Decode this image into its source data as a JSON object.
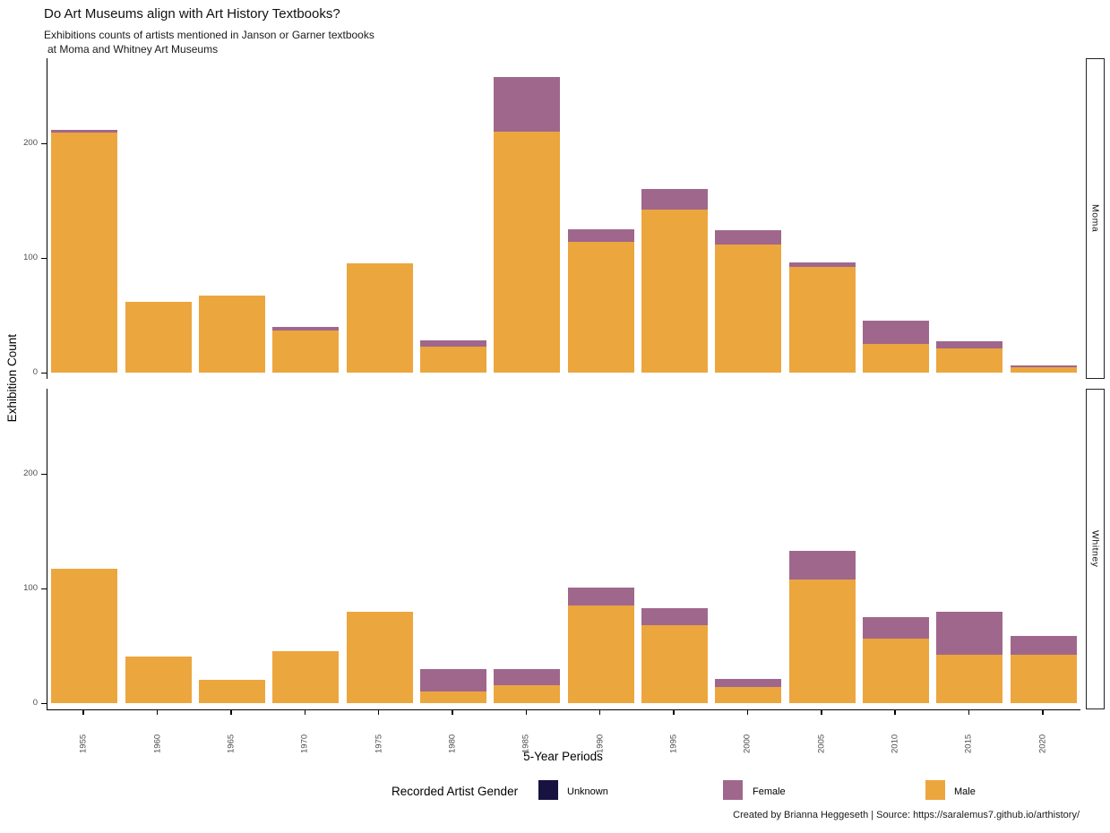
{
  "title": "Do Art Museums align with Art History Textbooks?",
  "subtitle_line1": "Exhibitions counts of artists mentioned in Janson or Garner textbooks",
  "subtitle_line2": "at Moma and Whitney Art Museums",
  "axes": {
    "y_title": "Exhibition Count",
    "x_title": "5-Year Periods"
  },
  "legend": {
    "title": "Recorded Artist Gender",
    "items": [
      {
        "label": "Unknown",
        "color": "#171240"
      },
      {
        "label": "Female",
        "color": "#A0678C"
      },
      {
        "label": "Male",
        "color": "#ECA63E"
      }
    ]
  },
  "caption": "Created by Brianna Heggeseth | Source: https://saralemus7.github.io/arthistory/",
  "chart_data": {
    "type": "bar",
    "stacked": true,
    "title": "Do Art Museums align with Art History Textbooks?",
    "subtitle": "Exhibitions counts of artists mentioned in Janson or Garner textbooks at Moma and Whitney Art Museums",
    "xlabel": "5-Year Periods",
    "ylabel": "Exhibition Count",
    "ylim": [
      0,
      273
    ],
    "yticks": [
      0,
      100,
      200
    ],
    "grid": false,
    "legend_position": "bottom",
    "categories": [
      1955,
      1960,
      1965,
      1970,
      1975,
      1980,
      1985,
      1990,
      1995,
      2000,
      2005,
      2010,
      2015,
      2020
    ],
    "facets": [
      {
        "name": "Moma",
        "series": [
          {
            "name": "Male",
            "color": "#ECA63E",
            "values": [
              209,
              62,
              67,
              37,
              95,
              23,
              210,
              114,
              142,
              112,
              92,
              25,
              21,
              5
            ]
          },
          {
            "name": "Female",
            "color": "#A0678C",
            "values": [
              3,
              0,
              0,
              3,
              0,
              5,
              48,
              11,
              18,
              12,
              4,
              20,
              6,
              1
            ]
          },
          {
            "name": "Unknown",
            "color": "#171240",
            "values": [
              0,
              0,
              0,
              0,
              0,
              0,
              0,
              0,
              0,
              0,
              0,
              0,
              0,
              0
            ]
          }
        ]
      },
      {
        "name": "Whitney",
        "series": [
          {
            "name": "Male",
            "color": "#ECA63E",
            "values": [
              117,
              41,
              20,
              45,
              80,
              10,
              16,
              85,
              68,
              14,
              108,
              56,
              42,
              42
            ]
          },
          {
            "name": "Female",
            "color": "#A0678C",
            "values": [
              0,
              0,
              0,
              0,
              0,
              20,
              14,
              16,
              15,
              7,
              25,
              19,
              38,
              17
            ]
          },
          {
            "name": "Unknown",
            "color": "#171240",
            "values": [
              0,
              0,
              0,
              0,
              0,
              0,
              0,
              0,
              0,
              0,
              0,
              0,
              0,
              0
            ]
          }
        ]
      }
    ]
  }
}
